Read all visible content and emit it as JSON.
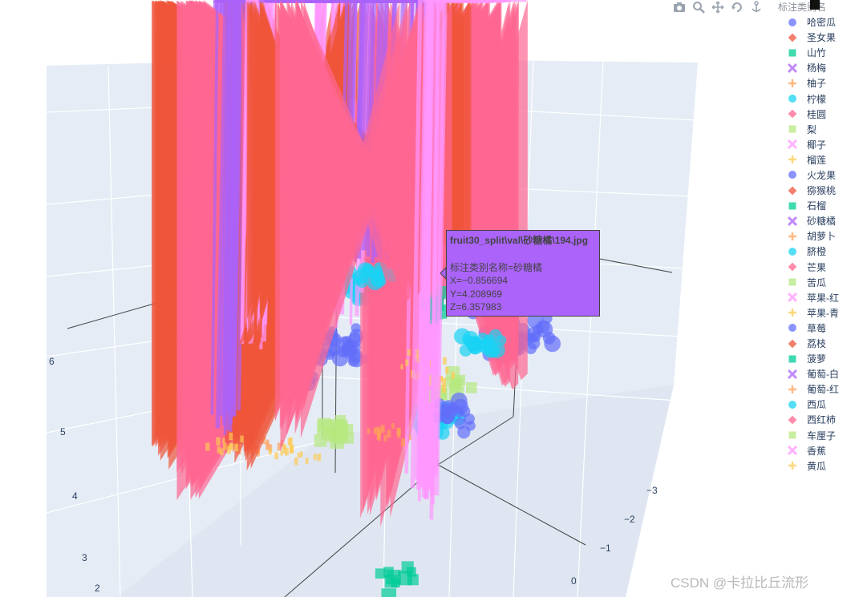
{
  "chart_data": {
    "type": "scatter",
    "dimensions": 3,
    "legend_title": "标注类别名",
    "legend_position": "top-right",
    "grid": true,
    "background_color": "#e5ecf6",
    "z_ticks": [
      "2",
      "3",
      "4",
      "5",
      "6"
    ],
    "y_ticks": [
      "0",
      "−1",
      "−2",
      "−3"
    ],
    "series": [
      {
        "name": "哈密瓜",
        "symbol": "circle",
        "color": "#636efa"
      },
      {
        "name": "圣女果",
        "symbol": "diamond",
        "color": "#ef553b"
      },
      {
        "name": "山竹",
        "symbol": "square",
        "color": "#00cc96"
      },
      {
        "name": "杨梅",
        "symbol": "x",
        "color": "#ab63fa"
      },
      {
        "name": "柚子",
        "symbol": "cross",
        "color": "#ffa15a"
      },
      {
        "name": "柠檬",
        "symbol": "circle",
        "color": "#19d3f3"
      },
      {
        "name": "桂圆",
        "symbol": "diamond",
        "color": "#ff6692"
      },
      {
        "name": "梨",
        "symbol": "square",
        "color": "#b6e880"
      },
      {
        "name": "椰子",
        "symbol": "x",
        "color": "#ff97ff"
      },
      {
        "name": "榴莲",
        "symbol": "cross",
        "color": "#fecb52"
      },
      {
        "name": "火龙果",
        "symbol": "circle",
        "color": "#636efa"
      },
      {
        "name": "猕猴桃",
        "symbol": "diamond",
        "color": "#ef553b"
      },
      {
        "name": "石榴",
        "symbol": "square",
        "color": "#00cc96"
      },
      {
        "name": "砂糖橘",
        "symbol": "x",
        "color": "#ab63fa"
      },
      {
        "name": "胡萝卜",
        "symbol": "cross",
        "color": "#ffa15a"
      },
      {
        "name": "脐橙",
        "symbol": "circle",
        "color": "#19d3f3"
      },
      {
        "name": "芒果",
        "symbol": "diamond",
        "color": "#ff6692"
      },
      {
        "name": "苦瓜",
        "symbol": "square",
        "color": "#b6e880"
      },
      {
        "name": "苹果-红",
        "symbol": "x",
        "color": "#ff97ff"
      },
      {
        "name": "苹果-青",
        "symbol": "cross",
        "color": "#fecb52"
      },
      {
        "name": "草莓",
        "symbol": "circle",
        "color": "#636efa"
      },
      {
        "name": "荔枝",
        "symbol": "diamond",
        "color": "#ef553b"
      },
      {
        "name": "菠萝",
        "symbol": "square",
        "color": "#00cc96"
      },
      {
        "name": "葡萄-白",
        "symbol": "x",
        "color": "#ab63fa"
      },
      {
        "name": "葡萄-红",
        "symbol": "cross",
        "color": "#ffa15a"
      },
      {
        "name": "西瓜",
        "symbol": "circle",
        "color": "#19d3f3"
      },
      {
        "name": "西红柿",
        "symbol": "diamond",
        "color": "#ff6692"
      },
      {
        "name": "车厘子",
        "symbol": "square",
        "color": "#b6e880"
      },
      {
        "name": "香蕉",
        "symbol": "x",
        "color": "#ff97ff"
      },
      {
        "name": "黄瓜",
        "symbol": "cross",
        "color": "#fecb52"
      }
    ],
    "hover": {
      "title": "fruit30_split\\val\\砂糖橘\\194.jpg",
      "series": "砂糖橘",
      "lines": [
        "标注类别名称=砂糖橘",
        "X=−0.856694",
        "Y=4.208969",
        "Z=6.357983"
      ]
    }
  },
  "modebar": [
    "camera-icon",
    "zoom-icon",
    "pan-icon",
    "orbit-icon",
    "turntable-icon"
  ],
  "watermark": "CSDN @卡拉比丘流形"
}
